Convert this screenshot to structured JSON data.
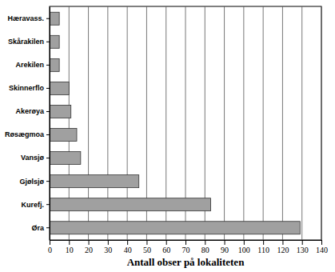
{
  "chart_data": {
    "type": "bar",
    "orientation": "horizontal",
    "xlabel": "Antall obser på lokaliteten",
    "categories": [
      "Hæravass.",
      "Skårakilen",
      "Arekilen",
      "Skinnerflo",
      "Akerøya",
      "Røsægmoa",
      "Vansjø",
      "Gjølsjø",
      "Kurefj.",
      "Øra"
    ],
    "values": [
      5,
      5,
      5,
      10,
      11,
      14,
      16,
      46,
      83,
      129
    ],
    "color": "#a0a0a0",
    "xlim": [
      0,
      140
    ],
    "xticks": [
      0,
      10,
      20,
      30,
      40,
      50,
      60,
      70,
      80,
      90,
      100,
      110,
      120,
      130,
      140
    ],
    "grid": true
  }
}
